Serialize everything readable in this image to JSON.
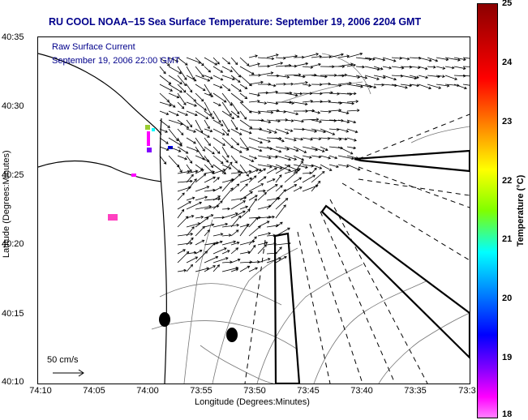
{
  "title": "RU COOL  NOAA−15  Sea Surface Temperature:  September 19, 2006 2204 GMT",
  "overlay": {
    "line1": "Raw Surface Current",
    "line2": "September 19, 2006 22:00 GMT"
  },
  "axes": {
    "xlabel": "Longitude (Degrees:Minutes)",
    "ylabel": "Latitude (Degrees:Minutes)",
    "x_ticks": [
      "74:10",
      "74:05",
      "74:00",
      "73:55",
      "73:50",
      "73:45",
      "73:40",
      "73:35",
      "73:3"
    ],
    "y_ticks": [
      "40:35",
      "40:30",
      "40:25",
      "40:20",
      "40:15",
      "40:10"
    ]
  },
  "scale_label": "50 cm/s",
  "colorbar": {
    "label": "Temperature (°C)",
    "ticks": [
      "25",
      "24",
      "23",
      "22",
      "21",
      "20",
      "19",
      "18"
    ],
    "range": [
      18,
      25
    ]
  },
  "colors": {
    "title": "#00008b",
    "overlay": "#00008b",
    "vectors": "#000000"
  }
}
